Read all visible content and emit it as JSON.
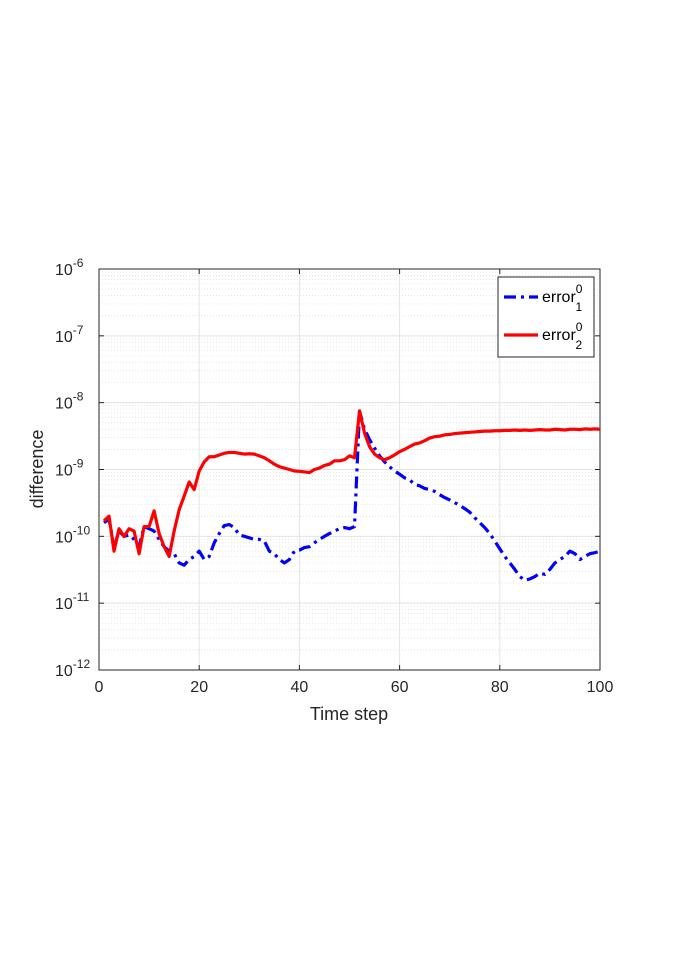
{
  "chart_data": {
    "type": "line",
    "title": "",
    "xlabel": "Time step",
    "ylabel": "difference",
    "xlim": [
      0,
      100
    ],
    "ylim": [
      1e-12,
      1e-06
    ],
    "yscale": "log",
    "grid": true,
    "minor_grid": true,
    "legend_position": "top-right",
    "x_ticks": [
      {
        "value": 0,
        "label": "0"
      },
      {
        "value": 20,
        "label": "20"
      },
      {
        "value": 40,
        "label": "40"
      },
      {
        "value": 60,
        "label": "60"
      },
      {
        "value": 80,
        "label": "80"
      },
      {
        "value": 100,
        "label": "100"
      }
    ],
    "y_ticks": [
      {
        "value": 1e-06,
        "base": "10",
        "exp": "-6"
      },
      {
        "value": 1e-07,
        "base": "10",
        "exp": "-7"
      },
      {
        "value": 1e-08,
        "base": "10",
        "exp": "-8"
      },
      {
        "value": 1e-09,
        "base": "10",
        "exp": "-9"
      },
      {
        "value": 1e-10,
        "base": "10",
        "exp": "-10"
      },
      {
        "value": 1e-11,
        "base": "10",
        "exp": "-11"
      },
      {
        "value": 1e-12,
        "base": "10",
        "exp": "-12"
      }
    ],
    "series": [
      {
        "name": "error",
        "name_sup": "0",
        "name_sub": "1",
        "color": "#0000ff",
        "dash": "dashdot",
        "x": [
          1,
          2,
          3,
          4,
          5,
          6,
          7,
          8,
          9,
          10,
          11,
          12,
          13,
          14,
          15,
          16,
          17,
          18,
          19,
          20,
          21,
          22,
          23,
          24,
          25,
          26,
          27,
          28,
          29,
          30,
          31,
          32,
          33,
          34,
          35,
          36,
          37,
          38,
          39,
          40,
          41,
          42,
          43,
          44,
          45,
          46,
          47,
          48,
          49,
          50,
          51,
          52,
          53,
          54,
          55,
          56,
          57,
          58,
          59,
          60,
          61,
          62,
          63,
          64,
          65,
          66,
          67,
          68,
          69,
          70,
          71,
          72,
          73,
          74,
          75,
          76,
          77,
          78,
          79,
          80,
          81,
          82,
          83,
          84,
          85,
          86,
          87,
          88,
          89,
          90,
          91,
          92,
          93,
          94,
          95,
          96,
          97,
          98,
          99,
          100
        ],
        "y": [
          1.6e-10,
          1.8e-10,
          7e-11,
          1.2e-10,
          1e-10,
          1.05e-10,
          9e-11,
          7e-11,
          1.4e-10,
          1.3e-10,
          1.2e-10,
          9e-11,
          7e-11,
          6e-11,
          5.5e-11,
          4e-11,
          3.7e-11,
          4.5e-11,
          5e-11,
          6e-11,
          4.5e-11,
          5e-11,
          8e-11,
          1.1e-10,
          1.45e-10,
          1.5e-10,
          1.35e-10,
          1.05e-10,
          1e-10,
          9.5e-11,
          9e-11,
          9e-11,
          8.5e-11,
          6e-11,
          5.5e-11,
          4.5e-11,
          4e-11,
          4.5e-11,
          6e-11,
          6.2e-11,
          6.8e-11,
          7e-11,
          8e-11,
          9e-11,
          1e-10,
          1.1e-10,
          1.2e-10,
          1.3e-10,
          1.35e-10,
          1.3e-10,
          1.4e-10,
          7.5e-09,
          4e-09,
          2.8e-09,
          2.1e-09,
          1.6e-09,
          1.3e-09,
          1.1e-09,
          9.5e-10,
          8.5e-10,
          7.5e-10,
          7e-10,
          6e-10,
          5.7e-10,
          5.2e-10,
          5e-10,
          4.7e-10,
          4.2e-10,
          3.8e-10,
          3.5e-10,
          3.2e-10,
          2.9e-10,
          2.6e-10,
          2.3e-10,
          1.9e-10,
          1.6e-10,
          1.35e-10,
          1.1e-10,
          8.5e-11,
          6.5e-11,
          5e-11,
          4e-11,
          3.2e-11,
          2.5e-11,
          2.2e-11,
          2.3e-11,
          2.5e-11,
          2.8e-11,
          2.7e-11,
          3.2e-11,
          4e-11,
          4.5e-11,
          5e-11,
          6e-11,
          5.5e-11,
          4.5e-11,
          5e-11,
          5.5e-11,
          5.7e-11,
          6e-11
        ]
      },
      {
        "name": "error",
        "name_sup": "0",
        "name_sub": "2",
        "color": "#ff0000",
        "dash": "solid",
        "x": [
          1,
          2,
          3,
          4,
          5,
          6,
          7,
          8,
          9,
          10,
          11,
          12,
          13,
          14,
          15,
          16,
          17,
          18,
          19,
          20,
          21,
          22,
          23,
          24,
          25,
          26,
          27,
          28,
          29,
          30,
          31,
          32,
          33,
          34,
          35,
          36,
          37,
          38,
          39,
          40,
          41,
          42,
          43,
          44,
          45,
          46,
          47,
          48,
          49,
          50,
          51,
          52,
          53,
          54,
          55,
          56,
          57,
          58,
          59,
          60,
          61,
          62,
          63,
          64,
          65,
          66,
          67,
          68,
          69,
          70,
          71,
          72,
          73,
          74,
          75,
          76,
          77,
          78,
          79,
          80,
          81,
          82,
          83,
          84,
          85,
          86,
          87,
          88,
          89,
          90,
          91,
          92,
          93,
          94,
          95,
          96,
          97,
          98,
          99,
          100
        ],
        "y": [
          1.7e-10,
          2e-10,
          6e-11,
          1.3e-10,
          1e-10,
          1.3e-10,
          1.2e-10,
          5.5e-11,
          1.4e-10,
          1.4e-10,
          2.4e-10,
          1.1e-10,
          7e-11,
          5e-11,
          1.2e-10,
          2.5e-10,
          4e-10,
          6.5e-10,
          5e-10,
          9.5e-10,
          1.3e-09,
          1.55e-09,
          1.55e-09,
          1.65e-09,
          1.75e-09,
          1.8e-09,
          1.8e-09,
          1.75e-09,
          1.7e-09,
          1.72e-09,
          1.7e-09,
          1.6e-09,
          1.5e-09,
          1.35e-09,
          1.2e-09,
          1.1e-09,
          1.05e-09,
          1e-09,
          9.5e-10,
          9.4e-10,
          9.2e-10,
          9e-10,
          1e-09,
          1.05e-09,
          1.15e-09,
          1.2e-09,
          1.35e-09,
          1.35e-09,
          1.4e-09,
          1.6e-09,
          1.5e-09,
          7.5e-09,
          3.5e-09,
          2.2e-09,
          1.7e-09,
          1.5e-09,
          1.4e-09,
          1.5e-09,
          1.65e-09,
          1.85e-09,
          2e-09,
          2.2e-09,
          2.4e-09,
          2.5e-09,
          2.7e-09,
          2.95e-09,
          3.1e-09,
          3.15e-09,
          3.3e-09,
          3.35e-09,
          3.45e-09,
          3.5e-09,
          3.55e-09,
          3.6e-09,
          3.65e-09,
          3.7e-09,
          3.75e-09,
          3.75e-09,
          3.8e-09,
          3.8e-09,
          3.85e-09,
          3.85e-09,
          3.9e-09,
          3.85e-09,
          3.9e-09,
          3.85e-09,
          3.9e-09,
          3.95e-09,
          3.9e-09,
          3.9e-09,
          4e-09,
          3.95e-09,
          3.9e-09,
          4e-09,
          4e-09,
          3.95e-09,
          4.05e-09,
          4e-09,
          4.05e-09,
          4e-09
        ]
      }
    ]
  }
}
